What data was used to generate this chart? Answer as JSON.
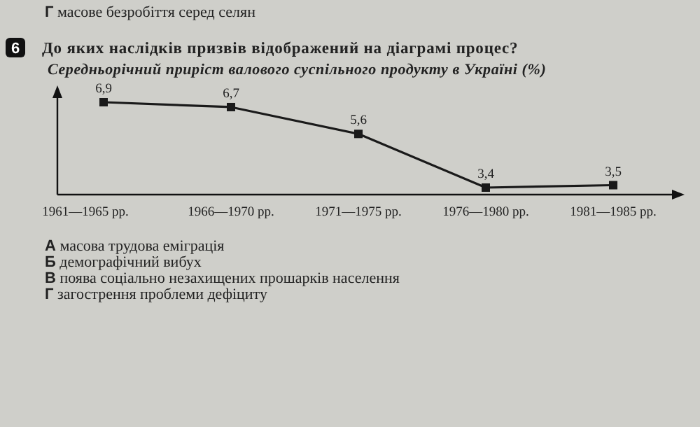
{
  "chart_data": {
    "type": "line",
    "title": "Середньорічний приріст валового суспільного продукту в Україні (%)",
    "categories": [
      "1961—1965 рр.",
      "1966—1970 рр.",
      "1971—1975 рр.",
      "1976—1980 рр.",
      "1981—1985 рр."
    ],
    "series": [
      {
        "color": "#1a1a1a",
        "values": [
          6.9,
          6.7,
          5.6,
          3.4,
          3.5
        ],
        "value_labels": [
          "6,9",
          "6,7",
          "5,6",
          "3,4",
          "3,5"
        ]
      }
    ],
    "marker": "square",
    "line_style": "solid",
    "tick_labels": "x",
    "annotations": [
      "Г масове безробіття серед селян",
      "6",
      "До яких наслідків призвів відображений на діаграмі процес?",
      "А масова трудова еміграція",
      "Б демографічний вибух",
      "В поява соціально незахищених прошарків населення",
      "Г загострення проблеми дефіциту"
    ]
  }
}
